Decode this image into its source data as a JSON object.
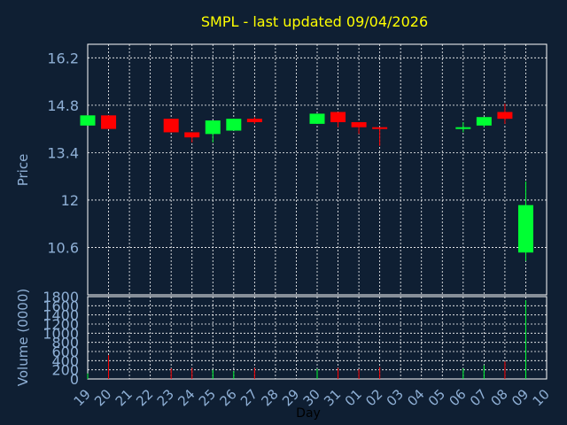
{
  "title": "SMPL - last updated 09/04/2026",
  "colors": {
    "background": "#0f1f33",
    "title": "#ffff00",
    "axis_text": "#8fb0d6",
    "xlabel_text": "#000000",
    "grid": "#ffffff",
    "up": "#00ff33",
    "down": "#ff0000"
  },
  "chart_data": [
    {
      "type": "candlestick",
      "ylabel": "Price",
      "ylim": [
        9.2,
        16.6
      ],
      "yticks": [
        "16.2",
        "14.8",
        "13.4",
        "12",
        "10.6"
      ],
      "grid": true,
      "x": [
        "19",
        "20",
        "21",
        "22",
        "23",
        "24",
        "25",
        "26",
        "27",
        "28",
        "29",
        "30",
        "31",
        "01",
        "02",
        "03",
        "04",
        "05",
        "06",
        "07",
        "08",
        "09",
        "10"
      ],
      "candles": [
        {
          "x": "19",
          "open": 14.2,
          "close": 14.5,
          "high": 14.5,
          "low": 14.2
        },
        {
          "x": "20",
          "open": 14.5,
          "close": 14.1,
          "high": 14.5,
          "low": 14.1
        },
        {
          "x": "23",
          "open": 14.4,
          "close": 14.0,
          "high": 14.4,
          "low": 14.0
        },
        {
          "x": "24",
          "open": 14.0,
          "close": 13.85,
          "high": 14.0,
          "low": 13.7
        },
        {
          "x": "25",
          "open": 13.95,
          "close": 14.35,
          "high": 14.35,
          "low": 13.7
        },
        {
          "x": "26",
          "open": 14.05,
          "close": 14.4,
          "high": 14.4,
          "low": 14.05
        },
        {
          "x": "27",
          "open": 14.4,
          "close": 14.3,
          "high": 14.45,
          "low": 14.25
        },
        {
          "x": "30",
          "open": 14.25,
          "close": 14.55,
          "high": 14.55,
          "low": 14.25
        },
        {
          "x": "31",
          "open": 14.6,
          "close": 14.3,
          "high": 14.6,
          "low": 14.15
        },
        {
          "x": "01",
          "open": 14.3,
          "close": 14.15,
          "high": 14.3,
          "low": 13.95
        },
        {
          "x": "02",
          "open": 14.15,
          "close": 14.1,
          "high": 14.15,
          "low": 13.6
        },
        {
          "x": "06",
          "open": 14.1,
          "close": 14.15,
          "high": 14.3,
          "low": 14.0
        },
        {
          "x": "07",
          "open": 14.2,
          "close": 14.45,
          "high": 14.45,
          "low": 14.15
        },
        {
          "x": "08",
          "open": 14.6,
          "close": 14.4,
          "high": 14.85,
          "low": 14.25
        },
        {
          "x": "09",
          "open": 10.45,
          "close": 11.85,
          "high": 12.55,
          "low": 10.2
        }
      ]
    },
    {
      "type": "bar",
      "ylabel": "Volume (0000)",
      "xlabel": "Day",
      "ylim": [
        0,
        1800
      ],
      "yticks": [
        "1800",
        "1600",
        "1400",
        "1200",
        "1000",
        "800",
        "600",
        "400",
        "200",
        "0"
      ],
      "grid": true,
      "categories": [
        "19",
        "20",
        "23",
        "24",
        "25",
        "26",
        "27",
        "30",
        "31",
        "01",
        "02",
        "06",
        "07",
        "08",
        "09"
      ],
      "values": [
        120,
        520,
        230,
        240,
        200,
        170,
        240,
        220,
        240,
        210,
        260,
        230,
        300,
        380,
        1720
      ],
      "directions": [
        "up",
        "down",
        "down",
        "down",
        "up",
        "up",
        "down",
        "up",
        "down",
        "down",
        "down",
        "up",
        "up",
        "down",
        "up"
      ]
    }
  ]
}
